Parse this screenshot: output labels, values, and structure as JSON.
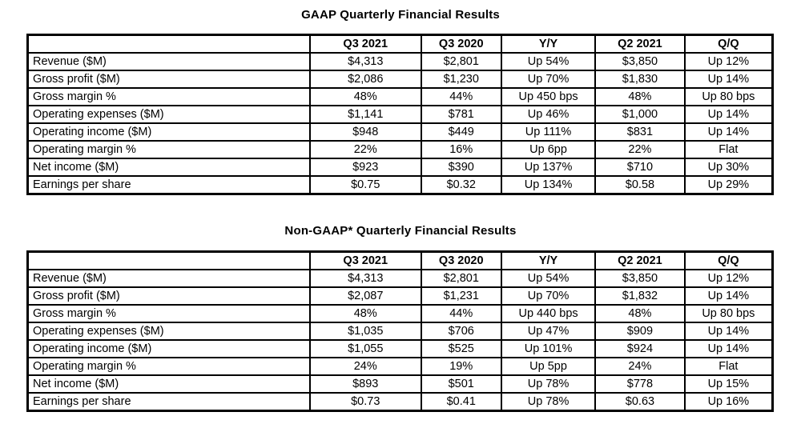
{
  "page": {
    "background": "#ffffff",
    "text_color": "#000000",
    "border_color": "#000000"
  },
  "tables": [
    {
      "title": "GAAP Quarterly Financial Results",
      "columns": [
        "",
        "Q3 2021",
        "Q3 2020",
        "Y/Y",
        "Q2 2021",
        "Q/Q"
      ],
      "rows": [
        {
          "label": "Revenue ($M)",
          "values": [
            "$4,313",
            "$2,801",
            "Up 54%",
            "$3,850",
            "Up 12%"
          ]
        },
        {
          "label": "Gross profit ($M)",
          "values": [
            "$2,086",
            "$1,230",
            "Up 70%",
            "$1,830",
            "Up 14%"
          ]
        },
        {
          "label": "Gross margin %",
          "values": [
            "48%",
            "44%",
            "Up 450 bps",
            "48%",
            "Up 80 bps"
          ]
        },
        {
          "label": "Operating expenses ($M)",
          "values": [
            "$1,141",
            "$781",
            "Up 46%",
            "$1,000",
            "Up 14%"
          ]
        },
        {
          "label": "Operating income ($M)",
          "values": [
            "$948",
            "$449",
            "Up 111%",
            "$831",
            "Up 14%"
          ]
        },
        {
          "label": "Operating margin %",
          "values": [
            "22%",
            "16%",
            "Up 6pp",
            "22%",
            "Flat"
          ]
        },
        {
          "label": "Net income ($M)",
          "values": [
            "$923",
            "$390",
            "Up 137%",
            "$710",
            "Up 30%"
          ]
        },
        {
          "label": "Earnings per share",
          "values": [
            "$0.75",
            "$0.32",
            "Up 134%",
            "$0.58",
            "Up 29%"
          ]
        }
      ]
    },
    {
      "title": "Non-GAAP* Quarterly Financial Results",
      "columns": [
        "",
        "Q3 2021",
        "Q3 2020",
        "Y/Y",
        "Q2 2021",
        "Q/Q"
      ],
      "rows": [
        {
          "label": "Revenue ($M)",
          "values": [
            "$4,313",
            "$2,801",
            "Up 54%",
            "$3,850",
            "Up 12%"
          ]
        },
        {
          "label": "Gross profit ($M)",
          "values": [
            "$2,087",
            "$1,231",
            "Up 70%",
            "$1,832",
            "Up 14%"
          ]
        },
        {
          "label": "Gross margin %",
          "values": [
            "48%",
            "44%",
            "Up 440 bps",
            "48%",
            "Up 80 bps"
          ]
        },
        {
          "label": "Operating expenses ($M)",
          "values": [
            "$1,035",
            "$706",
            "Up 47%",
            "$909",
            "Up 14%"
          ]
        },
        {
          "label": "Operating income ($M)",
          "values": [
            "$1,055",
            "$525",
            "Up 101%",
            "$924",
            "Up 14%"
          ]
        },
        {
          "label": "Operating margin %",
          "values": [
            "24%",
            "19%",
            "Up 5pp",
            "24%",
            "Flat"
          ]
        },
        {
          "label": "Net income ($M)",
          "values": [
            "$893",
            "$501",
            "Up 78%",
            "$778",
            "Up 15%"
          ]
        },
        {
          "label": "Earnings per share",
          "values": [
            "$0.73",
            "$0.41",
            "Up 78%",
            "$0.63",
            "Up 16%"
          ]
        }
      ]
    }
  ]
}
